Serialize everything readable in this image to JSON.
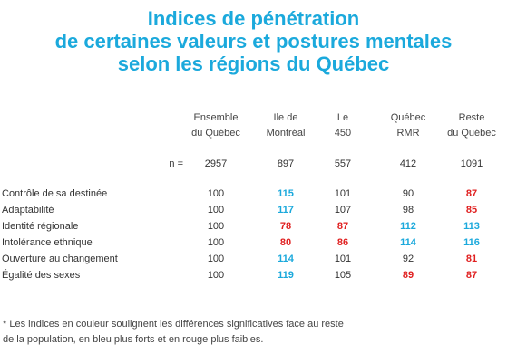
{
  "title": {
    "line1": "Indices de pénétration",
    "line2": "de certaines valeurs et postures mentales",
    "line3": "selon les régions du Québec"
  },
  "columns": [
    {
      "line1": "Ensemble",
      "line2": "du Québec",
      "n": "2957"
    },
    {
      "line1": "Ile de",
      "line2": "Montréal",
      "n": "897"
    },
    {
      "line1": "Le",
      "line2": "450",
      "n": "557"
    },
    {
      "line1": "Québec",
      "line2": "RMR",
      "n": "412"
    },
    {
      "line1": "Reste",
      "line2": "du Québec",
      "n": "1091"
    }
  ],
  "n_label": "n =",
  "rows": [
    {
      "label": "Contrôle de sa destinée",
      "values": [
        "100",
        "115",
        "101",
        "90",
        "87"
      ],
      "colors": [
        "none",
        "blue",
        "none",
        "none",
        "red"
      ]
    },
    {
      "label": "Adaptabilité",
      "values": [
        "100",
        "117",
        "107",
        "98",
        "85"
      ],
      "colors": [
        "none",
        "blue",
        "none",
        "none",
        "red"
      ]
    },
    {
      "label": "Identité régionale",
      "values": [
        "100",
        "78",
        "87",
        "112",
        "113"
      ],
      "colors": [
        "none",
        "red",
        "red",
        "blue",
        "blue"
      ]
    },
    {
      "label": "Intolérance ethnique",
      "values": [
        "100",
        "80",
        "86",
        "114",
        "116"
      ],
      "colors": [
        "none",
        "red",
        "red",
        "blue",
        "blue"
      ]
    },
    {
      "label": "Ouverture au changement",
      "values": [
        "100",
        "114",
        "101",
        "92",
        "81"
      ],
      "colors": [
        "none",
        "blue",
        "none",
        "none",
        "red"
      ]
    },
    {
      "label": "Égalité des sexes",
      "values": [
        "100",
        "119",
        "105",
        "89",
        "87"
      ],
      "colors": [
        "none",
        "blue",
        "none",
        "red",
        "red"
      ]
    }
  ],
  "footnote": {
    "line1": "* Les indices en couleur soulignent les différences significatives face au reste",
    "line2": "de la population, en bleu plus forts et en rouge plus faibles."
  },
  "accent_colors": {
    "blue": "#1ba9dc",
    "red": "#e02020"
  }
}
